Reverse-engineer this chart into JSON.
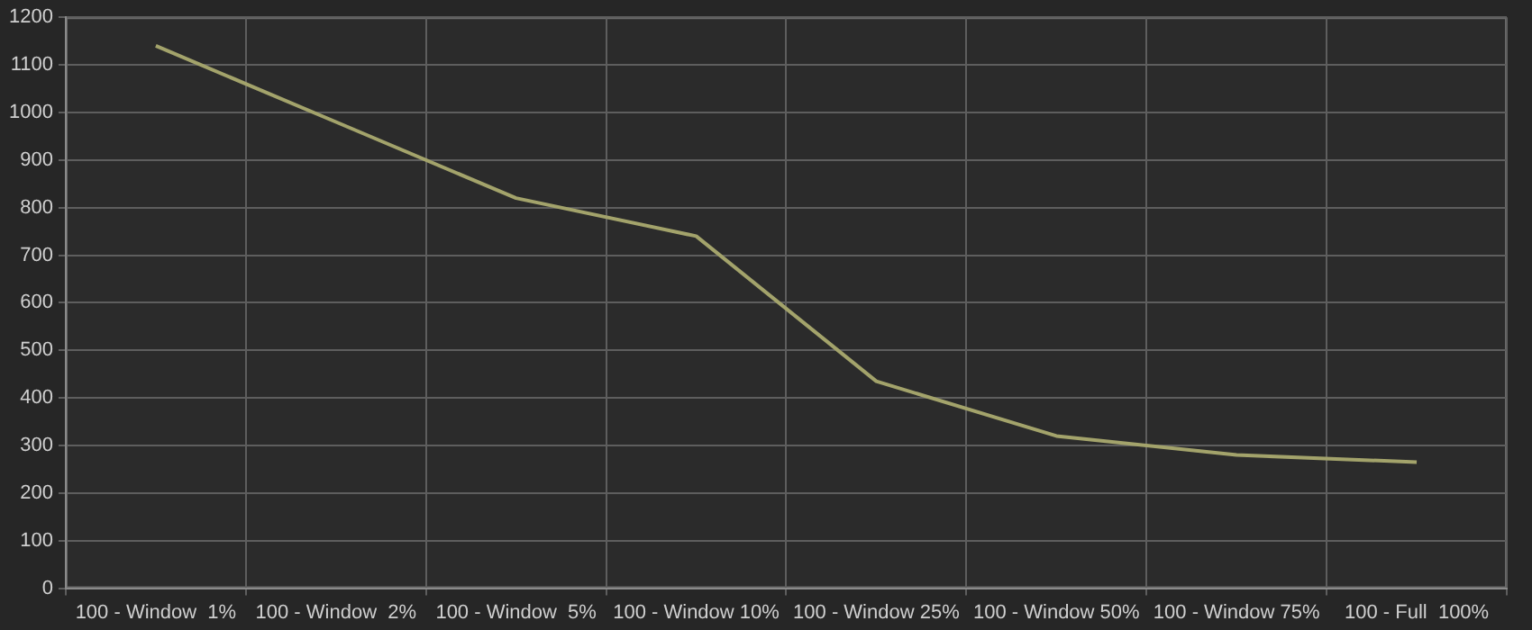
{
  "chart_data": {
    "type": "line",
    "categories": [
      "100 - Window  1%",
      "100 - Window  2%",
      "100 - Window  5%",
      "100 - Window 10%",
      "100 - Window 25%",
      "100 - Window 50%",
      "100 - Window 75%",
      "100 - Full  100%"
    ],
    "series": [
      {
        "color": "#a3a36b",
        "values": [
          1140,
          980,
          820,
          740,
          435,
          320,
          280,
          265
        ]
      }
    ],
    "ylim": [
      0,
      1200
    ],
    "yticks": [
      0,
      100,
      200,
      300,
      400,
      500,
      600,
      700,
      800,
      900,
      1000,
      1100,
      1200
    ],
    "grid": true,
    "legend": false,
    "marker": "none",
    "line_style": "solid"
  }
}
